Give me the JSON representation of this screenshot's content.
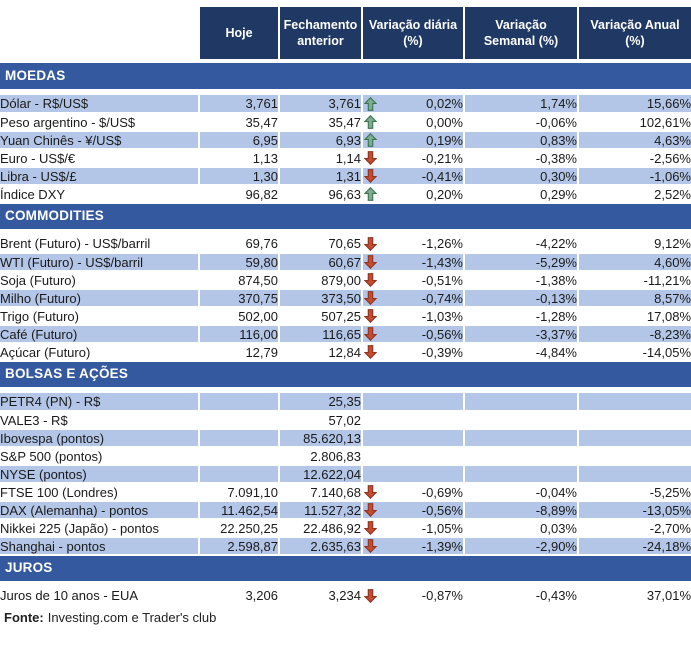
{
  "chart_data": {
    "type": "table",
    "columns": [
      "Hoje",
      "Fechamento anterior",
      "Variação diária (%)",
      "Variação Semanal (%)",
      "Variação Anual (%)"
    ],
    "sections": [
      {
        "title": "MOEDAS",
        "rows": [
          {
            "label": "Dólar - R$/US$",
            "hoje": "3,761",
            "fechamento": "3,761",
            "trend": "up",
            "var_diaria": "0,02%",
            "var_semanal": "1,74%",
            "var_anual": "15,66%",
            "shaded": true
          },
          {
            "label": "Peso argentino - $/US$",
            "hoje": "35,47",
            "fechamento": "35,47",
            "trend": "up",
            "var_diaria": "0,00%",
            "var_semanal": "-0,06%",
            "var_anual": "102,61%",
            "shaded": false
          },
          {
            "label": "Yuan Chinês - ¥/US$",
            "hoje": "6,95",
            "fechamento": "6,93",
            "trend": "up",
            "var_diaria": "0,19%",
            "var_semanal": "0,83%",
            "var_anual": "4,63%",
            "shaded": true
          },
          {
            "label": "Euro - US$/€",
            "hoje": "1,13",
            "fechamento": "1,14",
            "trend": "down",
            "var_diaria": "-0,21%",
            "var_semanal": "-0,38%",
            "var_anual": "-2,56%",
            "shaded": false
          },
          {
            "label": "Libra - US$/£",
            "hoje": "1,30",
            "fechamento": "1,31",
            "trend": "down",
            "var_diaria": "-0,41%",
            "var_semanal": "0,30%",
            "var_anual": "-1,06%",
            "shaded": true
          },
          {
            "label": "Índice DXY",
            "hoje": "96,82",
            "fechamento": "96,63",
            "trend": "up",
            "var_diaria": "0,20%",
            "var_semanal": "0,29%",
            "var_anual": "2,52%",
            "shaded": false
          }
        ]
      },
      {
        "title": "COMMODITIES",
        "rows": [
          {
            "label": "Brent (Futuro) - US$/barril",
            "hoje": "69,76",
            "fechamento": "70,65",
            "trend": "down",
            "var_diaria": "-1,26%",
            "var_semanal": "-4,22%",
            "var_anual": "9,12%",
            "shaded": false
          },
          {
            "label": "WTI (Futuro) - US$/barril",
            "hoje": "59,80",
            "fechamento": "60,67",
            "trend": "down",
            "var_diaria": "-1,43%",
            "var_semanal": "-5,29%",
            "var_anual": "4,60%",
            "shaded": true
          },
          {
            "label": "Soja (Futuro)",
            "hoje": "874,50",
            "fechamento": "879,00",
            "trend": "down",
            "var_diaria": "-0,51%",
            "var_semanal": "-1,38%",
            "var_anual": "-11,21%",
            "shaded": false
          },
          {
            "label": "Milho (Futuro)",
            "hoje": "370,75",
            "fechamento": "373,50",
            "trend": "down",
            "var_diaria": "-0,74%",
            "var_semanal": "-0,13%",
            "var_anual": "8,57%",
            "shaded": true
          },
          {
            "label": "Trigo (Futuro)",
            "hoje": "502,00",
            "fechamento": "507,25",
            "trend": "down",
            "var_diaria": "-1,03%",
            "var_semanal": "-1,28%",
            "var_anual": "17,08%",
            "shaded": false
          },
          {
            "label": "Café (Futuro)",
            "hoje": "116,00",
            "fechamento": "116,65",
            "trend": "down",
            "var_diaria": "-0,56%",
            "var_semanal": "-3,37%",
            "var_anual": "-8,23%",
            "shaded": true
          },
          {
            "label": "Açúcar (Futuro)",
            "hoje": "12,79",
            "fechamento": "12,84",
            "trend": "down",
            "var_diaria": "-0,39%",
            "var_semanal": "-4,84%",
            "var_anual": "-14,05%",
            "shaded": false
          }
        ]
      },
      {
        "title": "BOLSAS E AÇÕES",
        "rows": [
          {
            "label": "PETR4 (PN) - R$",
            "hoje": "",
            "fechamento": "25,35",
            "trend": "",
            "var_diaria": "",
            "var_semanal": "",
            "var_anual": "",
            "shaded": true
          },
          {
            "label": "VALE3 - R$",
            "hoje": "",
            "fechamento": "57,02",
            "trend": "",
            "var_diaria": "",
            "var_semanal": "",
            "var_anual": "",
            "shaded": false
          },
          {
            "label": "Ibovespa (pontos)",
            "hoje": "",
            "fechamento": "85.620,13",
            "trend": "",
            "var_diaria": "",
            "var_semanal": "",
            "var_anual": "",
            "shaded": true
          },
          {
            "label": "S&P 500 (pontos)",
            "hoje": "",
            "fechamento": "2.806,83",
            "trend": "",
            "var_diaria": "",
            "var_semanal": "",
            "var_anual": "",
            "shaded": false
          },
          {
            "label": "NYSE (pontos)",
            "hoje": "",
            "fechamento": "12.622,04",
            "trend": "",
            "var_diaria": "",
            "var_semanal": "",
            "var_anual": "",
            "shaded": true
          },
          {
            "label": "FTSE 100 (Londres)",
            "hoje": "7.091,10",
            "fechamento": "7.140,68",
            "trend": "down",
            "var_diaria": "-0,69%",
            "var_semanal": "-0,04%",
            "var_anual": "-5,25%",
            "shaded": false
          },
          {
            "label": "DAX (Alemanha) - pontos",
            "hoje": "11.462,54",
            "fechamento": "11.527,32",
            "trend": "down",
            "var_diaria": "-0,56%",
            "var_semanal": "-8,89%",
            "var_anual": "-13,05%",
            "shaded": true
          },
          {
            "label": "Nikkei 225 (Japão) - pontos",
            "hoje": "22.250,25",
            "fechamento": "22.486,92",
            "trend": "down",
            "var_diaria": "-1,05%",
            "var_semanal": "0,03%",
            "var_anual": "-2,70%",
            "shaded": false
          },
          {
            "label": "Shanghai - pontos",
            "hoje": "2.598,87",
            "fechamento": "2.635,63",
            "trend": "down",
            "var_diaria": "-1,39%",
            "var_semanal": "-2,90%",
            "var_anual": "-24,18%",
            "shaded": true
          }
        ]
      },
      {
        "title": "JUROS",
        "rows": [
          {
            "label": "Juros de 10 anos - EUA",
            "hoje": "3,206",
            "fechamento": "3,234",
            "trend": "down",
            "var_diaria": "-0,87%",
            "var_semanal": "-0,43%",
            "var_anual": "37,01%",
            "shaded": false
          }
        ]
      }
    ]
  },
  "footer": {
    "source_label": "Fonte:",
    "source_text": "Investing.com e Trader's club"
  },
  "icons": {
    "up": "arrow-up-icon",
    "down": "arrow-down-icon"
  },
  "colors": {
    "header_bg": "#1F3864",
    "header_text": "#FFFFFF",
    "section_bg": "#35599E",
    "section_text": "#FFFFFF",
    "row_shaded": "#B4C6E7",
    "row_plain": "#FFFFFF",
    "grid": "#FFFFFF",
    "text": "#1A1A1A",
    "arrow_up_fill": "#7AAE8D",
    "arrow_up_stroke": "#3E7354",
    "arrow_down_fill": "#C74B2E",
    "arrow_down_stroke": "#8E3522"
  }
}
